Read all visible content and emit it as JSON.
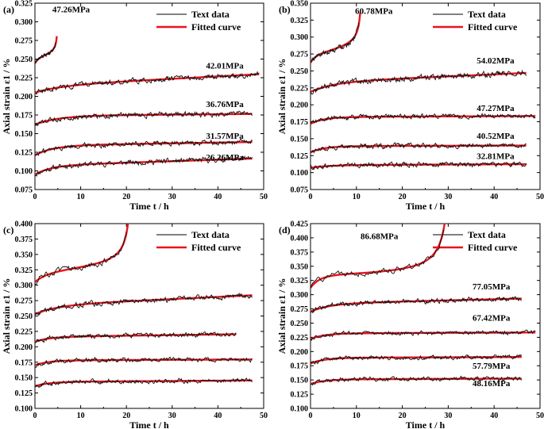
{
  "chart_data": [
    {
      "type": "line",
      "panel_label": "(a)",
      "xlabel": "Time t / h",
      "ylabel": "Axial strain ε1 / %",
      "xlim": [
        0,
        50
      ],
      "ylim": [
        0.075,
        0.325
      ],
      "x_ticks": [
        0,
        10,
        20,
        30,
        40,
        50
      ],
      "y_ticks": [
        0.075,
        0.1,
        0.125,
        0.15,
        0.175,
        0.2,
        0.225,
        0.25,
        0.275,
        0.3,
        0.325
      ],
      "y_tick_labels": [
        "0.075",
        "0.100",
        "0.125",
        "0.150",
        "0.175",
        "0.200",
        "0.225",
        "0.250",
        "0.275",
        "0.300",
        "0.325"
      ],
      "x_tick_labels": [
        "0",
        "10",
        "20",
        "30",
        "40",
        "50"
      ],
      "legend": [
        "Text data",
        "Fitted curve"
      ],
      "legend_position": "top-right",
      "series": [
        {
          "name": "26.26MPa",
          "t_end": 47.5,
          "a": 0.095,
          "b": 0.012,
          "c": 0.2,
          "tau": 3.5,
          "noise": 0.0025,
          "label_x": 41.5,
          "label_y": 0.1145
        },
        {
          "name": "31.57MPa",
          "t_end": 47.5,
          "a": 0.121,
          "b": 0.013,
          "c": 0.1,
          "tau": 4.0,
          "noise": 0.0025,
          "label_x": 41.5,
          "label_y": 0.143
        },
        {
          "name": "36.76MPa",
          "t_end": 47.5,
          "a": 0.162,
          "b": 0.012,
          "c": 0.05,
          "tau": 5.0,
          "noise": 0.0025,
          "label_x": 41.5,
          "label_y": 0.1855
        },
        {
          "name": "42.01MPa",
          "t_end": 49.0,
          "a": 0.205,
          "b": 0.009,
          "c": 0.32,
          "tau": 6.0,
          "noise": 0.0025,
          "label_x": 41.5,
          "label_y": 0.237
        },
        {
          "name": "47.26MPa",
          "t_end": 4.6,
          "a": 0.244,
          "b": 0.006,
          "c": 2.0,
          "tau": 0.6,
          "tf": 5.1,
          "accel": 0.0016,
          "noise": 0.0015,
          "label_x": 7.9,
          "label_y": 0.313
        }
      ]
    },
    {
      "type": "line",
      "panel_label": "(b)",
      "xlabel": "Time t / h",
      "ylabel": "Axial strain ε1 / %",
      "xlim": [
        0,
        50
      ],
      "ylim": [
        0.075,
        0.35
      ],
      "x_ticks": [
        0,
        10,
        20,
        30,
        40,
        50
      ],
      "y_ticks": [
        0.075,
        0.1,
        0.125,
        0.15,
        0.175,
        0.2,
        0.225,
        0.25,
        0.275,
        0.3,
        0.325,
        0.35
      ],
      "y_tick_labels": [
        "0.075",
        "0.100",
        "0.125",
        "0.150",
        "0.175",
        "0.200",
        "0.225",
        "0.250",
        "0.275",
        "0.300",
        "0.325",
        "0.350"
      ],
      "x_tick_labels": [
        "0",
        "10",
        "20",
        "30",
        "40",
        "50"
      ],
      "legend": [
        "Text data",
        "Fitted curve"
      ],
      "legend_position": "top-right",
      "series": [
        {
          "name": "32.81MPa",
          "t_end": 47.0,
          "a": 0.107,
          "b": 0.004,
          "c": 0.03,
          "tau": 4.0,
          "noise": 0.0025,
          "label_x": 40.3,
          "label_y": 0.12
        },
        {
          "name": "40.52MPa",
          "t_end": 47.0,
          "a": 0.13,
          "b": 0.009,
          "c": 0.02,
          "tau": 3.0,
          "noise": 0.0025,
          "label_x": 40.3,
          "label_y": 0.15
        },
        {
          "name": "47.27MPa",
          "t_end": 49.0,
          "a": 0.172,
          "b": 0.01,
          "c": 0.03,
          "tau": 3.0,
          "noise": 0.0025,
          "label_x": 40.3,
          "label_y": 0.191
        },
        {
          "name": "54.02MPa",
          "t_end": 47.0,
          "a": 0.219,
          "b": 0.014,
          "c": 0.3,
          "tau": 5.0,
          "noise": 0.003,
          "label_x": 40.3,
          "label_y": 0.261
        },
        {
          "name": "60.78MPa",
          "t_end": 10.5,
          "a": 0.262,
          "b": 0.01,
          "c": 1.6,
          "tau": 1.0,
          "tf": 11.4,
          "accel": 0.0028,
          "noise": 0.003,
          "label_x": 13.8,
          "label_y": 0.334
        }
      ]
    },
    {
      "type": "line",
      "panel_label": "(c)",
      "xlabel": "Time t / h",
      "ylabel": "Axial strain ε1 / %",
      "xlim": [
        0,
        50
      ],
      "ylim": [
        0.1,
        0.4
      ],
      "x_ticks": [
        0,
        10,
        20,
        30,
        40,
        50
      ],
      "y_ticks": [
        0.1,
        0.125,
        0.15,
        0.175,
        0.2,
        0.225,
        0.25,
        0.275,
        0.3,
        0.325,
        0.35,
        0.375,
        0.4
      ],
      "y_tick_labels": [
        "0.100",
        "0.125",
        "0.150",
        "0.175",
        "0.200",
        "0.225",
        "0.250",
        "0.275",
        "0.300",
        "0.325",
        "0.350",
        "0.375",
        "0.400"
      ],
      "x_tick_labels": [
        "0",
        "10",
        "20",
        "30",
        "40",
        "50"
      ],
      "legend": [
        "Text data",
        "Fitted curve"
      ],
      "legend_position": "top-right",
      "series": [
        {
          "name": "",
          "t_end": 47.5,
          "a": 0.136,
          "b": 0.007,
          "c": 0.05,
          "tau": 3.0,
          "noise": 0.0025
        },
        {
          "name": "",
          "t_end": 47.5,
          "a": 0.17,
          "b": 0.008,
          "c": 0.03,
          "tau": 3.0,
          "noise": 0.0025
        },
        {
          "name": "",
          "t_end": 44.0,
          "a": 0.208,
          "b": 0.008,
          "c": 0.1,
          "tau": 3.0,
          "noise": 0.0025
        },
        {
          "name": "",
          "t_end": 47.5,
          "a": 0.253,
          "b": 0.014,
          "c": 0.35,
          "tau": 5.0,
          "noise": 0.003
        },
        {
          "name": "",
          "t_end": 20.0,
          "a": 0.305,
          "b": 0.014,
          "c": 0.75,
          "tau": 2.5,
          "tf": 21.5,
          "accel": 0.0042,
          "noise": 0.0035
        }
      ]
    },
    {
      "type": "line",
      "panel_label": "(d)",
      "xlabel": "Time t / h",
      "ylabel": "Axial strain ε1 / %",
      "xlim": [
        0,
        50
      ],
      "ylim": [
        0.1,
        0.425
      ],
      "x_ticks": [
        0,
        10,
        20,
        30,
        40,
        50
      ],
      "y_ticks": [
        0.1,
        0.125,
        0.15,
        0.175,
        0.2,
        0.225,
        0.25,
        0.275,
        0.3,
        0.325,
        0.35,
        0.375,
        0.4,
        0.425
      ],
      "y_tick_labels": [
        "0.100",
        "0.125",
        "0.150",
        "0.175",
        "0.200",
        "0.225",
        "0.250",
        "0.275",
        "0.300",
        "0.325",
        "0.350",
        "0.375",
        "0.400",
        "0.425"
      ],
      "x_tick_labels": [
        "0",
        "10",
        "20",
        "30",
        "40",
        "50"
      ],
      "legend": [
        "Text data",
        "Fitted curve"
      ],
      "legend_position": "top-right",
      "series": [
        {
          "name": "48.16MPa",
          "t_end": 46.0,
          "a": 0.143,
          "b": 0.008,
          "c": 0.03,
          "tau": 3.0,
          "noise": 0.0025,
          "label_x": 39.4,
          "label_y": 0.139
        },
        {
          "name": "57.79MPa",
          "t_end": 46.0,
          "a": 0.179,
          "b": 0.01,
          "c": 0.03,
          "tau": 3.0,
          "noise": 0.0025,
          "label_x": 39.4,
          "label_y": 0.17
        },
        {
          "name": "67.42MPa",
          "t_end": 49.0,
          "a": 0.222,
          "b": 0.01,
          "c": 0.03,
          "tau": 3.0,
          "noise": 0.0025,
          "label_x": 39.4,
          "label_y": 0.254
        },
        {
          "name": "77.05MPa",
          "t_end": 46.0,
          "a": 0.27,
          "b": 0.014,
          "c": 0.2,
          "tau": 4.0,
          "noise": 0.003,
          "label_x": 39.4,
          "label_y": 0.309
        },
        {
          "name": "86.68MPa",
          "t_end": 29.0,
          "a": 0.312,
          "b": 0.022,
          "c": 0.1,
          "tau": 2.0,
          "tf": 31.0,
          "accel": 0.006,
          "noise": 0.004,
          "label_x": 15.0,
          "label_y": 0.3975
        }
      ]
    }
  ]
}
